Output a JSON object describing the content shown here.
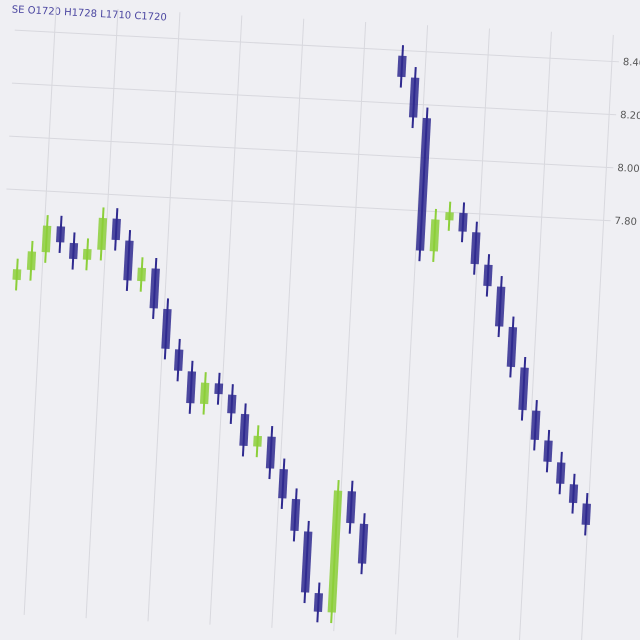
{
  "chart_data": {
    "type": "candlestick",
    "title": "SE O1720 H1728 L1710 C1720",
    "up_color": "#8ccf3a",
    "down_color": "#2f2a8f",
    "open": [
      7.46,
      7.5,
      7.57,
      7.67,
      7.61,
      7.55,
      7.59,
      7.71,
      7.63,
      7.48,
      7.53,
      7.38,
      7.23,
      7.15,
      7.03,
      7.11,
      7.07,
      7.0,
      6.88,
      6.92,
      6.8,
      6.69,
      6.57,
      6.34,
      6.27,
      6.73,
      6.61,
      8.38,
      8.3,
      8.15,
      7.65,
      7.77,
      7.8,
      7.73,
      7.61,
      7.53,
      7.38,
      7.23,
      7.07,
      6.96,
      6.88,
      6.8,
      6.73
    ],
    "high": [
      7.54,
      7.61,
      7.71,
      7.71,
      7.65,
      7.63,
      7.75,
      7.75,
      7.67,
      7.57,
      7.57,
      7.42,
      7.27,
      7.19,
      7.15,
      7.15,
      7.11,
      7.04,
      6.96,
      6.96,
      6.84,
      6.73,
      6.61,
      6.38,
      6.77,
      6.77,
      6.65,
      8.42,
      8.34,
      8.19,
      7.81,
      7.84,
      7.84,
      7.77,
      7.65,
      7.57,
      7.42,
      7.27,
      7.11,
      7.0,
      6.92,
      6.84,
      6.77
    ],
    "low": [
      7.42,
      7.46,
      7.53,
      7.57,
      7.51,
      7.51,
      7.55,
      7.59,
      7.44,
      7.44,
      7.34,
      7.19,
      7.11,
      6.99,
      6.99,
      7.03,
      6.96,
      6.84,
      6.84,
      6.76,
      6.65,
      6.53,
      6.3,
      6.23,
      6.23,
      6.57,
      6.42,
      8.26,
      8.11,
      7.61,
      7.61,
      7.73,
      7.69,
      7.57,
      7.49,
      7.34,
      7.19,
      7.03,
      6.92,
      6.84,
      6.76,
      6.69,
      6.61
    ],
    "close": [
      7.5,
      7.57,
      7.67,
      7.61,
      7.55,
      7.59,
      7.71,
      7.63,
      7.48,
      7.53,
      7.38,
      7.23,
      7.15,
      7.03,
      7.11,
      7.07,
      7.0,
      6.88,
      6.92,
      6.8,
      6.69,
      6.57,
      6.34,
      6.27,
      6.73,
      6.61,
      6.46,
      8.3,
      8.15,
      7.65,
      7.77,
      7.8,
      7.73,
      7.61,
      7.53,
      7.38,
      7.23,
      7.07,
      6.96,
      6.88,
      6.8,
      6.73,
      6.65
    ],
    "ylim": [
      6.2,
      8.5
    ],
    "yticks": [
      {
        "value": 8.4,
        "label": "8.40"
      },
      {
        "value": 8.2,
        "label": "8.20"
      },
      {
        "value": 8.0,
        "label": "8.00"
      },
      {
        "value": 7.8,
        "label": "7.80"
      }
    ],
    "grid": true
  }
}
